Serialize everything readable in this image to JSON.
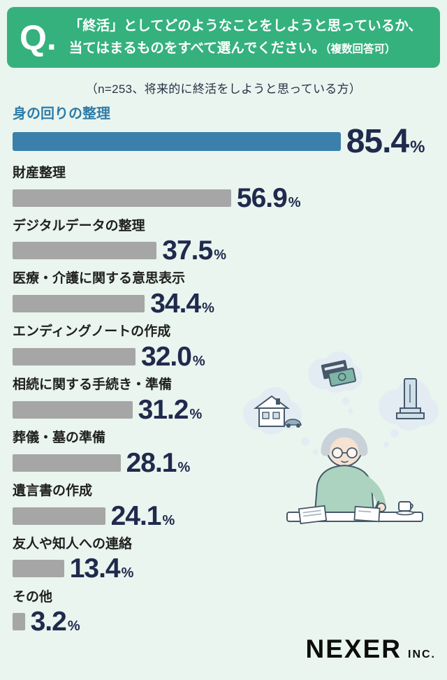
{
  "header": {
    "q_label": "Q.",
    "question_line1": "「終活」としてどのようなことをしようと思っているか、",
    "question_line2_main": "当てはまるものをすべて選んでください。",
    "question_line2_note": "（複数回答可）"
  },
  "subtitle": "（n=253、将来的に終活をしようと思っている方）",
  "chart_data": {
    "type": "bar",
    "orientation": "horizontal",
    "title": "「終活」としてどのようなことをしようと思っているか",
    "sample_note": "n=253、将来的に終活をしようと思っている方",
    "categories": [
      "身の回りの整理",
      "財産整理",
      "デジタルデータの整理",
      "医療・介護に関する意思表示",
      "エンディングノートの作成",
      "相続に関する手続き・準備",
      "葬儀・墓の準備",
      "遺言書の作成",
      "友人や知人への連絡",
      "その他"
    ],
    "values": [
      85.4,
      56.9,
      37.5,
      34.4,
      32.0,
      31.2,
      28.1,
      24.1,
      13.4,
      3.2
    ],
    "value_labels": [
      "85.4",
      "56.9",
      "37.5",
      "34.4",
      "32.0",
      "31.2",
      "28.1",
      "24.1",
      "13.4",
      "3.2"
    ],
    "value_suffix": "%",
    "xlim": [
      0,
      100
    ],
    "highlight_index": 0,
    "grid": false,
    "legend": "none"
  },
  "footer": {
    "brand": "NEXER",
    "brand_suffix": "INC."
  },
  "colors": {
    "background": "#e9f5ee",
    "header_green": "#35b17e",
    "header_text": "#ffffff",
    "highlight_bar": "#3a80ab",
    "highlight_label": "#2e7ca8",
    "bar_gray": "#a6a6a6",
    "label_text": "#1f1f1f",
    "value_text": "#202a4e",
    "subtitle_text": "#273247",
    "logo_text": "#0d0d0d"
  }
}
